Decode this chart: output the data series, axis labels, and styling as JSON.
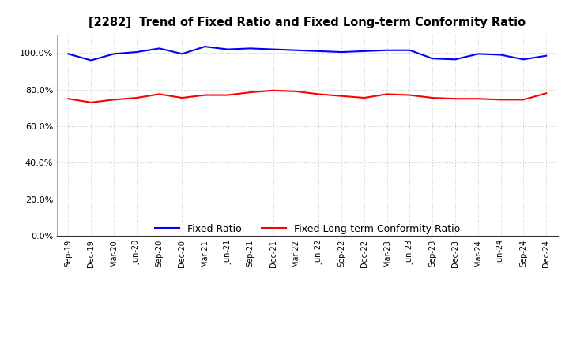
{
  "title": "[2282]  Trend of Fixed Ratio and Fixed Long-term Conformity Ratio",
  "x_labels": [
    "Sep-19",
    "Dec-19",
    "Mar-20",
    "Jun-20",
    "Sep-20",
    "Dec-20",
    "Mar-21",
    "Jun-21",
    "Sep-21",
    "Dec-21",
    "Mar-22",
    "Jun-22",
    "Sep-22",
    "Dec-22",
    "Mar-23",
    "Jun-23",
    "Sep-23",
    "Dec-23",
    "Mar-24",
    "Jun-24",
    "Sep-24",
    "Dec-24"
  ],
  "fixed_ratio": [
    99.5,
    96.0,
    99.5,
    100.5,
    102.5,
    99.5,
    103.5,
    102.0,
    102.5,
    102.0,
    101.5,
    101.0,
    100.5,
    101.0,
    101.5,
    101.5,
    97.0,
    96.5,
    99.5,
    99.0,
    96.5,
    98.5
  ],
  "fixed_lt_ratio": [
    75.0,
    73.0,
    74.5,
    75.5,
    77.5,
    75.5,
    77.0,
    77.0,
    78.5,
    79.5,
    79.0,
    77.5,
    76.5,
    75.5,
    77.5,
    77.0,
    75.5,
    75.0,
    75.0,
    74.5,
    74.5,
    78.0
  ],
  "fixed_ratio_color": "#0000FF",
  "fixed_lt_ratio_color": "#FF0000",
  "ylim": [
    0,
    110
  ],
  "yticks": [
    0,
    20,
    40,
    60,
    80,
    100
  ],
  "background_color": "#FFFFFF",
  "grid_color": "#AAAAAA",
  "legend_fixed_ratio": "Fixed Ratio",
  "legend_fixed_lt_ratio": "Fixed Long-term Conformity Ratio"
}
